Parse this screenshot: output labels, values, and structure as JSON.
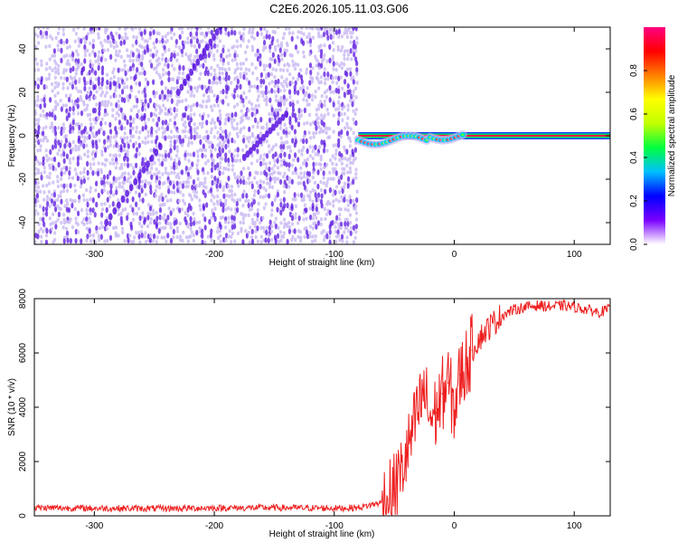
{
  "title": "C2E6.2026.105.11.03.G06",
  "colors": {
    "scatter_light": "#c9b8f2",
    "scatter_dark": "#5a14e0",
    "snr_line": "#ee1f1f",
    "axis": "#000000"
  },
  "chart_data": [
    {
      "type": "heatmap",
      "name": "spectrogram",
      "xlabel": "Height of straight line (km)",
      "ylabel": "Frequency (Hz)",
      "xlim": [
        -350,
        130
      ],
      "ylim": [
        -50,
        50
      ],
      "xticks": [
        -300,
        -200,
        -100,
        0,
        100
      ],
      "xtick_labels": [
        "-300",
        "-200",
        "-100",
        "0",
        "100"
      ],
      "yticks": [
        -40,
        -20,
        0,
        20,
        40
      ],
      "ytick_labels": [
        "-40",
        "-20",
        "0",
        "20",
        "40"
      ],
      "noise_region_x": [
        -350,
        -80
      ],
      "carrier_line": {
        "x_start": -80,
        "x_end": 130,
        "frequency_hz": 0
      },
      "colorbar": {
        "label": "Normalized spectral amplitude",
        "range": [
          0,
          1
        ],
        "ticks": [
          0.0,
          0.2,
          0.4,
          0.6,
          0.8
        ],
        "tick_labels": [
          "0.0",
          "0.2",
          "0.4",
          "0.6",
          "0.8"
        ],
        "stops": [
          "#ffffff",
          "#7a00ff",
          "#0000ff",
          "#00c0ff",
          "#00ff40",
          "#c0ff00",
          "#ffff00",
          "#ff8000",
          "#ff0000",
          "#ff0080"
        ]
      }
    },
    {
      "type": "line",
      "name": "snr",
      "xlabel": "Height of straight line (km)",
      "ylabel": "SNR (10 * v/v)",
      "xlim": [
        -350,
        130
      ],
      "ylim": [
        0,
        8000
      ],
      "xticks": [
        -300,
        -200,
        -100,
        0,
        100
      ],
      "xtick_labels": [
        "-300",
        "-200",
        "-100",
        "0",
        "100"
      ],
      "yticks": [
        0,
        2000,
        4000,
        6000,
        8000
      ],
      "ytick_labels": [
        "0",
        "2000",
        "4000",
        "6000",
        "8000"
      ],
      "series": [
        {
          "name": "SNR",
          "x": [
            -350,
            -300,
            -250,
            -200,
            -150,
            -100,
            -80,
            -60,
            -50,
            -45,
            -40,
            -35,
            -30,
            -25,
            -20,
            -15,
            -10,
            -5,
            0,
            5,
            10,
            15,
            20,
            30,
            40,
            50,
            60,
            70,
            80,
            90,
            100,
            110,
            120,
            130
          ],
          "values": [
            300,
            280,
            270,
            290,
            300,
            280,
            300,
            500,
            1000,
            1500,
            2200,
            3000,
            3800,
            4600,
            3600,
            3800,
            4500,
            4900,
            3900,
            5200,
            5600,
            6100,
            6500,
            7000,
            7400,
            7600,
            7700,
            7750,
            7700,
            7750,
            7700,
            7600,
            7500,
            7600
          ]
        }
      ]
    }
  ]
}
